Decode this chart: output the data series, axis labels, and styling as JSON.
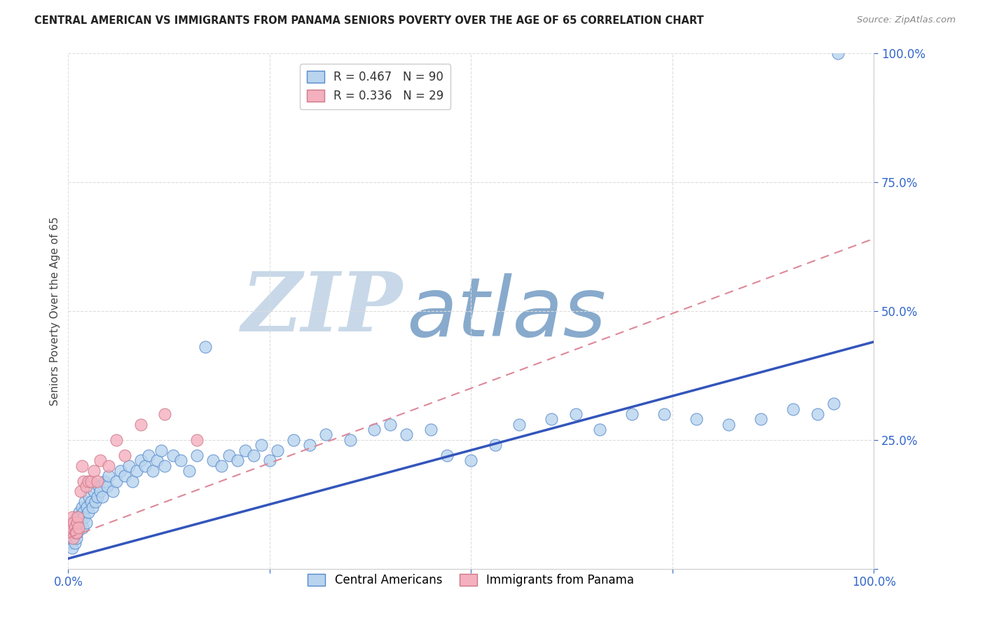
{
  "title": "CENTRAL AMERICAN VS IMMIGRANTS FROM PANAMA SENIORS POVERTY OVER THE AGE OF 65 CORRELATION CHART",
  "source": "Source: ZipAtlas.com",
  "ylabel": "Seniors Poverty Over the Age of 65",
  "xlim": [
    0,
    1
  ],
  "ylim": [
    0,
    1
  ],
  "xticks": [
    0.0,
    0.25,
    0.5,
    0.75,
    1.0
  ],
  "yticks": [
    0.0,
    0.25,
    0.5,
    0.75,
    1.0
  ],
  "background_color": "#ffffff",
  "grid_color": "#dddddd",
  "watermark_zip": "ZIP",
  "watermark_atlas": "atlas",
  "watermark_color_zip": "#c8d8e8",
  "watermark_color_atlas": "#88aacc",
  "legend_r1": "R = 0.467",
  "legend_n1": "N = 90",
  "legend_r2": "R = 0.336",
  "legend_n2": "N = 29",
  "color_blue": "#b8d4ee",
  "color_pink": "#f4b0be",
  "edge_blue": "#5588cc",
  "edge_pink": "#cc7788",
  "line_color_blue": "#3355bb",
  "line_color_pink": "#dd8899",
  "label1": "Central Americans",
  "label2": "Immigrants from Panama",
  "blue_slope": 0.42,
  "blue_intercept": 0.02,
  "pink_slope": 0.58,
  "pink_intercept": 0.06,
  "blue_x": [
    0.002,
    0.003,
    0.004,
    0.005,
    0.005,
    0.006,
    0.007,
    0.007,
    0.008,
    0.009,
    0.01,
    0.01,
    0.011,
    0.012,
    0.013,
    0.014,
    0.015,
    0.016,
    0.017,
    0.018,
    0.019,
    0.02,
    0.021,
    0.022,
    0.023,
    0.025,
    0.026,
    0.028,
    0.03,
    0.032,
    0.034,
    0.036,
    0.038,
    0.04,
    0.042,
    0.045,
    0.048,
    0.05,
    0.055,
    0.06,
    0.065,
    0.07,
    0.075,
    0.08,
    0.085,
    0.09,
    0.095,
    0.1,
    0.105,
    0.11,
    0.115,
    0.12,
    0.13,
    0.14,
    0.15,
    0.16,
    0.17,
    0.18,
    0.19,
    0.2,
    0.21,
    0.22,
    0.23,
    0.24,
    0.25,
    0.26,
    0.28,
    0.3,
    0.32,
    0.35,
    0.38,
    0.4,
    0.42,
    0.45,
    0.47,
    0.5,
    0.53,
    0.56,
    0.6,
    0.63,
    0.66,
    0.7,
    0.74,
    0.78,
    0.82,
    0.86,
    0.9,
    0.93,
    0.95,
    0.955
  ],
  "blue_y": [
    0.06,
    0.05,
    0.07,
    0.04,
    0.08,
    0.06,
    0.07,
    0.09,
    0.05,
    0.08,
    0.06,
    0.1,
    0.07,
    0.09,
    0.08,
    0.11,
    0.1,
    0.09,
    0.12,
    0.08,
    0.11,
    0.1,
    0.13,
    0.09,
    0.12,
    0.11,
    0.14,
    0.13,
    0.12,
    0.15,
    0.13,
    0.14,
    0.16,
    0.15,
    0.14,
    0.17,
    0.16,
    0.18,
    0.15,
    0.17,
    0.19,
    0.18,
    0.2,
    0.17,
    0.19,
    0.21,
    0.2,
    0.22,
    0.19,
    0.21,
    0.23,
    0.2,
    0.22,
    0.21,
    0.19,
    0.22,
    0.43,
    0.21,
    0.2,
    0.22,
    0.21,
    0.23,
    0.22,
    0.24,
    0.21,
    0.23,
    0.25,
    0.24,
    0.26,
    0.25,
    0.27,
    0.28,
    0.26,
    0.27,
    0.22,
    0.21,
    0.24,
    0.28,
    0.29,
    0.3,
    0.27,
    0.3,
    0.3,
    0.29,
    0.28,
    0.29,
    0.31,
    0.3,
    0.32,
    1.0
  ],
  "pink_x": [
    0.001,
    0.002,
    0.003,
    0.004,
    0.005,
    0.005,
    0.006,
    0.007,
    0.008,
    0.009,
    0.01,
    0.011,
    0.012,
    0.013,
    0.015,
    0.017,
    0.019,
    0.022,
    0.025,
    0.028,
    0.032,
    0.036,
    0.04,
    0.05,
    0.06,
    0.07,
    0.09,
    0.12,
    0.16
  ],
  "pink_y": [
    0.08,
    0.07,
    0.07,
    0.09,
    0.08,
    0.1,
    0.06,
    0.09,
    0.08,
    0.07,
    0.07,
    0.09,
    0.1,
    0.08,
    0.15,
    0.2,
    0.17,
    0.16,
    0.17,
    0.17,
    0.19,
    0.17,
    0.21,
    0.2,
    0.25,
    0.22,
    0.28,
    0.3,
    0.25
  ]
}
